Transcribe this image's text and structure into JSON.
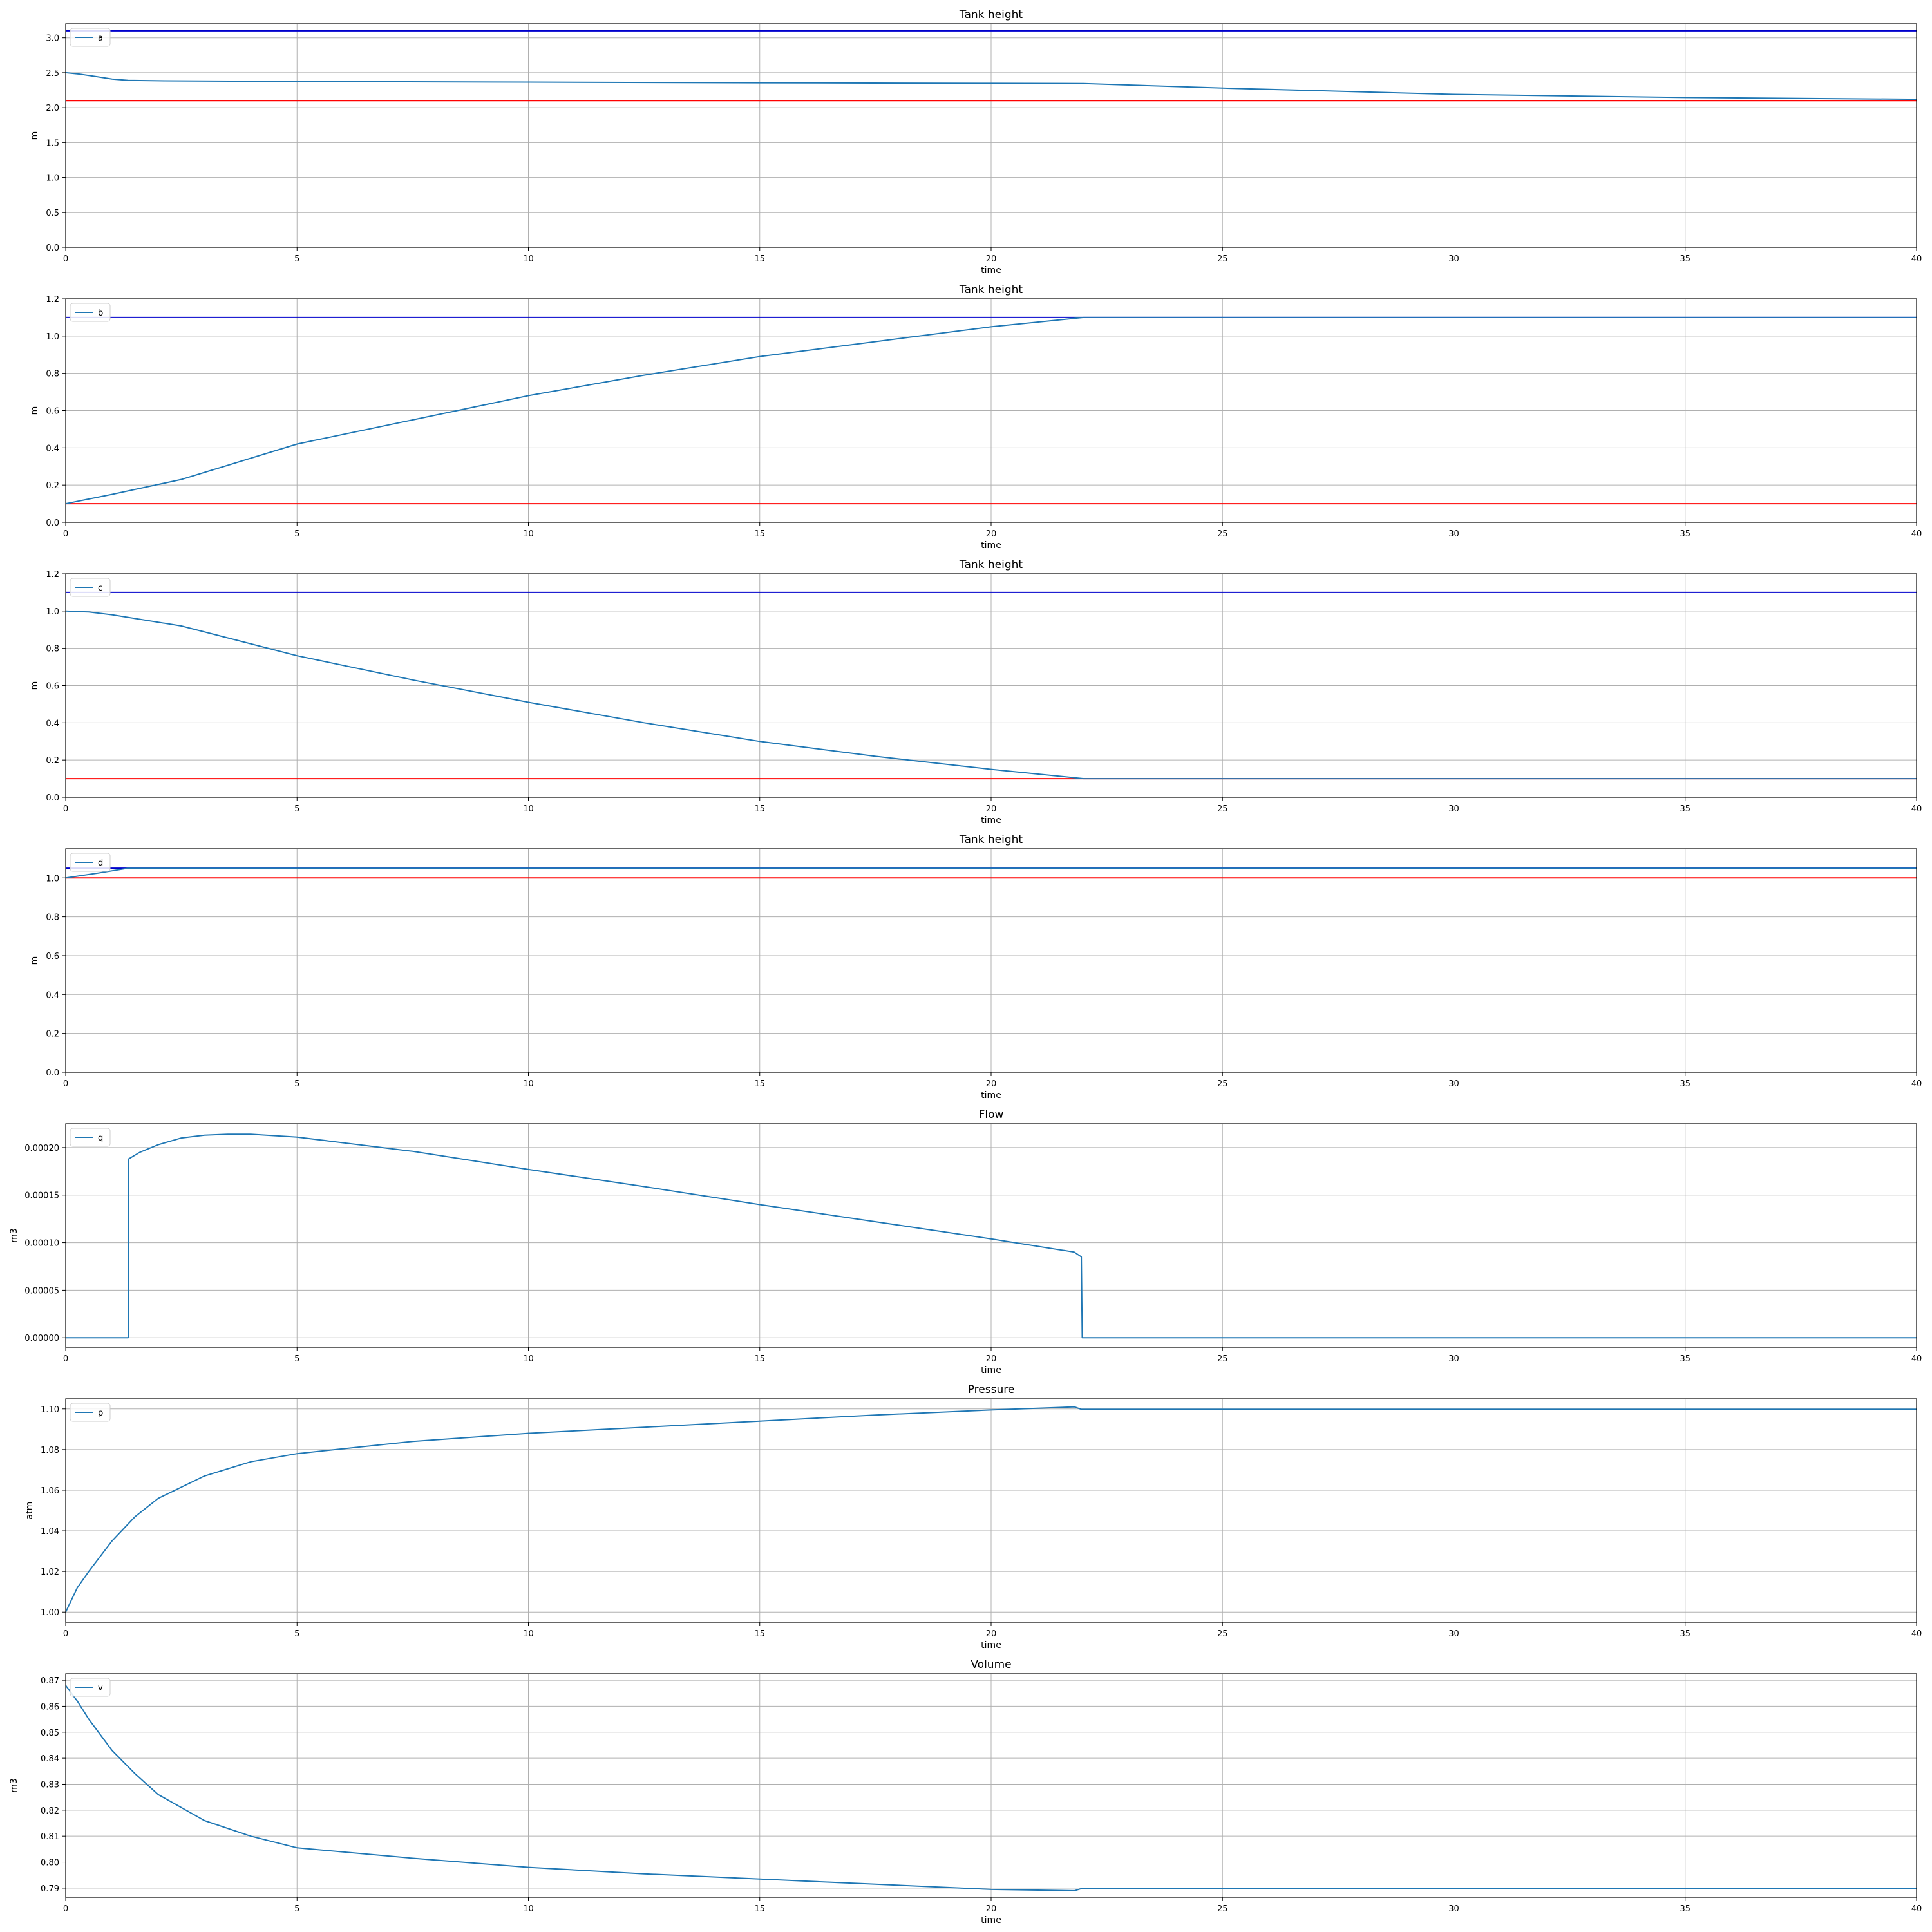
{
  "chart_data": [
    {
      "type": "line",
      "title": "Tank height",
      "xlabel": "time",
      "ylabel": "m",
      "xlim": [
        0,
        40
      ],
      "ylim": [
        0,
        3.2
      ],
      "xticks": [
        0,
        5,
        10,
        15,
        20,
        25,
        30,
        35,
        40
      ],
      "xtick_labels": [
        "0",
        "5",
        "10",
        "15",
        "20",
        "25",
        "30",
        "35",
        "40"
      ],
      "yticks": [
        0,
        0.5,
        1.0,
        1.5,
        2.0,
        2.5,
        3.0
      ],
      "ytick_labels": [
        "0.0",
        "0.5",
        "1.0",
        "1.5",
        "2.0",
        "2.5",
        "3.0"
      ],
      "grid": true,
      "legend": "upper left",
      "series": [
        {
          "name": "a",
          "color": "#1f77b4",
          "x": [
            0,
            0.3,
            0.7,
            1.0,
            1.35,
            2,
            5,
            10,
            15,
            20,
            22,
            25,
            30,
            35,
            40
          ],
          "y": [
            2.5,
            2.48,
            2.44,
            2.41,
            2.39,
            2.385,
            2.375,
            2.365,
            2.355,
            2.348,
            2.345,
            2.28,
            2.19,
            2.145,
            2.12
          ]
        }
      ],
      "hlines": [
        {
          "y": 3.1,
          "color": "#0000cc"
        },
        {
          "y": 2.1,
          "color": "#ff0000"
        }
      ]
    },
    {
      "type": "line",
      "title": "Tank height",
      "xlabel": "time",
      "ylabel": "m",
      "xlim": [
        0,
        40
      ],
      "ylim": [
        0,
        1.2
      ],
      "xticks": [
        0,
        5,
        10,
        15,
        20,
        25,
        30,
        35,
        40
      ],
      "xtick_labels": [
        "0",
        "5",
        "10",
        "15",
        "20",
        "25",
        "30",
        "35",
        "40"
      ],
      "yticks": [
        0,
        0.2,
        0.4,
        0.6,
        0.8,
        1.0,
        1.2
      ],
      "ytick_labels": [
        "0.0",
        "0.2",
        "0.4",
        "0.6",
        "0.8",
        "1.0",
        "1.2"
      ],
      "grid": true,
      "legend": "upper left",
      "series": [
        {
          "name": "b",
          "color": "#1f77b4",
          "x": [
            0,
            1,
            2.5,
            5,
            7.5,
            10,
            12.5,
            15,
            17.5,
            20,
            22,
            25,
            30,
            35,
            40
          ],
          "y": [
            0.1,
            0.15,
            0.23,
            0.42,
            0.55,
            0.68,
            0.79,
            0.89,
            0.97,
            1.05,
            1.1,
            1.1,
            1.1,
            1.1,
            1.1
          ]
        }
      ],
      "hlines": [
        {
          "y": 1.1,
          "color": "#0000cc"
        },
        {
          "y": 0.1,
          "color": "#ff0000"
        }
      ]
    },
    {
      "type": "line",
      "title": "Tank height",
      "xlabel": "time",
      "ylabel": "m",
      "xlim": [
        0,
        40
      ],
      "ylim": [
        0,
        1.2
      ],
      "xticks": [
        0,
        5,
        10,
        15,
        20,
        25,
        30,
        35,
        40
      ],
      "xtick_labels": [
        "0",
        "5",
        "10",
        "15",
        "20",
        "25",
        "30",
        "35",
        "40"
      ],
      "yticks": [
        0,
        0.2,
        0.4,
        0.6,
        0.8,
        1.0,
        1.2
      ],
      "ytick_labels": [
        "0.0",
        "0.2",
        "0.4",
        "0.6",
        "0.8",
        "1.0",
        "1.2"
      ],
      "grid": true,
      "legend": "upper left",
      "series": [
        {
          "name": "c",
          "color": "#1f77b4",
          "x": [
            0,
            0.5,
            1,
            2.5,
            5,
            7.5,
            10,
            12.5,
            15,
            17.5,
            20,
            22,
            25,
            30,
            35,
            40
          ],
          "y": [
            1.0,
            0.995,
            0.98,
            0.92,
            0.76,
            0.63,
            0.51,
            0.4,
            0.3,
            0.22,
            0.15,
            0.1,
            0.1,
            0.1,
            0.1,
            0.1
          ]
        }
      ],
      "hlines": [
        {
          "y": 1.1,
          "color": "#0000cc"
        },
        {
          "y": 0.1,
          "color": "#ff0000"
        }
      ]
    },
    {
      "type": "line",
      "title": "Tank height",
      "xlabel": "time",
      "ylabel": "m",
      "xlim": [
        0,
        40
      ],
      "ylim": [
        0,
        1.15
      ],
      "xticks": [
        0,
        5,
        10,
        15,
        20,
        25,
        30,
        35,
        40
      ],
      "xtick_labels": [
        "0",
        "5",
        "10",
        "15",
        "20",
        "25",
        "30",
        "35",
        "40"
      ],
      "yticks": [
        0,
        0.2,
        0.4,
        0.6,
        0.8,
        1.0
      ],
      "ytick_labels": [
        "0.0",
        "0.2",
        "0.4",
        "0.6",
        "0.8",
        "1.0"
      ],
      "grid": true,
      "legend": "upper left",
      "series": [
        {
          "name": "d",
          "color": "#1f77b4",
          "x": [
            0,
            0.7,
            1.35,
            5,
            10,
            20,
            30,
            40
          ],
          "y": [
            1.0,
            1.025,
            1.05,
            1.05,
            1.05,
            1.05,
            1.05,
            1.05
          ]
        }
      ],
      "hlines": [
        {
          "y": 1.05,
          "color": "#0000cc"
        },
        {
          "y": 1.0,
          "color": "#ff0000"
        }
      ]
    },
    {
      "type": "line",
      "title": "Flow",
      "xlabel": "time",
      "ylabel": "m3",
      "xlim": [
        0,
        40
      ],
      "ylim": [
        -1e-05,
        0.000225
      ],
      "xticks": [
        0,
        5,
        10,
        15,
        20,
        25,
        30,
        35,
        40
      ],
      "xtick_labels": [
        "0",
        "5",
        "10",
        "15",
        "20",
        "25",
        "30",
        "35",
        "40"
      ],
      "yticks": [
        0,
        5e-05,
        0.0001,
        0.00015,
        0.0002
      ],
      "ytick_labels": [
        "0.00000",
        "0.00005",
        "0.00010",
        "0.00015",
        "0.00020"
      ],
      "grid": true,
      "legend": "upper left",
      "series": [
        {
          "name": "q",
          "color": "#1f77b4",
          "x": [
            0,
            1.35,
            1.36,
            1.6,
            2,
            2.5,
            3,
            3.5,
            4,
            5,
            7.5,
            10,
            12.5,
            15,
            17.5,
            20,
            21.8,
            21.95,
            21.97,
            40
          ],
          "y": [
            0,
            0,
            0.000188,
            0.000195,
            0.000203,
            0.00021,
            0.000213,
            0.000214,
            0.000214,
            0.000211,
            0.000196,
            0.000177,
            0.000159,
            0.00014,
            0.000122,
            0.000104,
            9e-05,
            8.5e-05,
            0,
            0
          ]
        }
      ],
      "hlines": []
    },
    {
      "type": "line",
      "title": "Pressure",
      "xlabel": "time",
      "ylabel": "atm",
      "xlim": [
        0,
        40
      ],
      "ylim": [
        0.995,
        1.105
      ],
      "xticks": [
        0,
        5,
        10,
        15,
        20,
        25,
        30,
        35,
        40
      ],
      "xtick_labels": [
        "0",
        "5",
        "10",
        "15",
        "20",
        "25",
        "30",
        "35",
        "40"
      ],
      "yticks": [
        1.0,
        1.02,
        1.04,
        1.06,
        1.08,
        1.1
      ],
      "ytick_labels": [
        "1.00",
        "1.02",
        "1.04",
        "1.06",
        "1.08",
        "1.10"
      ],
      "grid": true,
      "legend": "upper left",
      "series": [
        {
          "name": "p",
          "color": "#1f77b4",
          "x": [
            0,
            0.25,
            0.5,
            1,
            1.5,
            2,
            3,
            4,
            5,
            7.5,
            10,
            12.5,
            15,
            17.5,
            20,
            21.8,
            21.95,
            25,
            30,
            35,
            40
          ],
          "y": [
            1.0,
            1.012,
            1.02,
            1.035,
            1.047,
            1.056,
            1.067,
            1.074,
            1.078,
            1.084,
            1.088,
            1.091,
            1.094,
            1.097,
            1.0995,
            1.101,
            1.0998,
            1.0998,
            1.0998,
            1.0998,
            1.0998
          ]
        }
      ],
      "hlines": []
    },
    {
      "type": "line",
      "title": "Volume",
      "xlabel": "time",
      "ylabel": "m3",
      "xlim": [
        0,
        40
      ],
      "ylim": [
        0.7865,
        0.8725
      ],
      "xticks": [
        0,
        5,
        10,
        15,
        20,
        25,
        30,
        35,
        40
      ],
      "xtick_labels": [
        "0",
        "5",
        "10",
        "15",
        "20",
        "25",
        "30",
        "35",
        "40"
      ],
      "yticks": [
        0.79,
        0.8,
        0.81,
        0.82,
        0.83,
        0.84,
        0.85,
        0.86,
        0.87
      ],
      "ytick_labels": [
        "0.79",
        "0.80",
        "0.81",
        "0.82",
        "0.83",
        "0.84",
        "0.85",
        "0.86",
        "0.87"
      ],
      "grid": true,
      "legend": "upper left",
      "series": [
        {
          "name": "v",
          "color": "#1f77b4",
          "x": [
            0,
            0.25,
            0.5,
            1,
            1.5,
            2,
            3,
            4,
            5,
            7.5,
            10,
            12.5,
            15,
            17.5,
            20,
            21.8,
            21.95,
            25,
            30,
            35,
            40
          ],
          "y": [
            0.868,
            0.862,
            0.855,
            0.843,
            0.834,
            0.826,
            0.816,
            0.81,
            0.8055,
            0.8015,
            0.798,
            0.7955,
            0.7935,
            0.7915,
            0.7895,
            0.789,
            0.7898,
            0.7898,
            0.7898,
            0.7898,
            0.7898
          ]
        }
      ],
      "hlines": []
    }
  ]
}
